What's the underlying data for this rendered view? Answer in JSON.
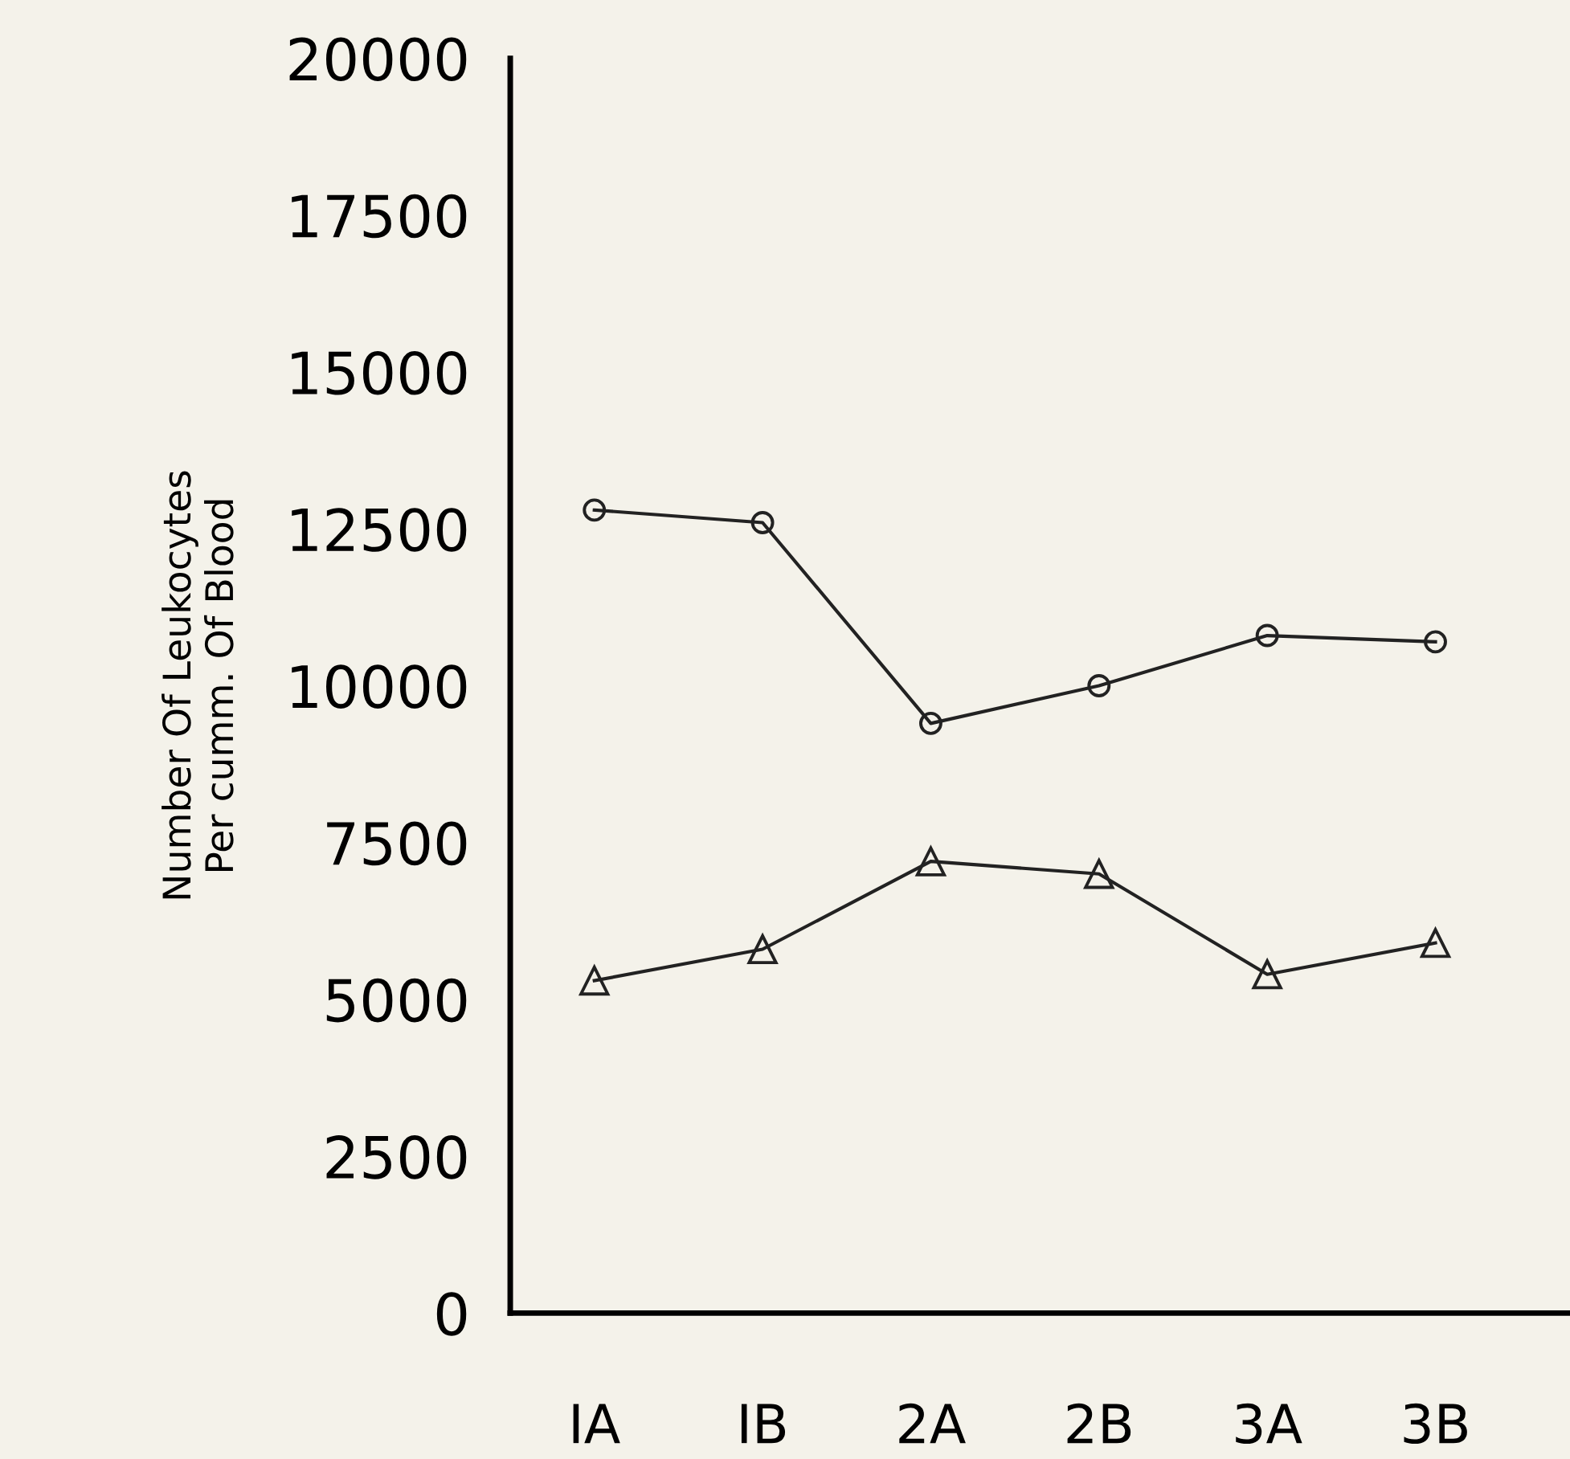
{
  "chart_data": {
    "type": "line",
    "ylabel": "Number Of Leukocytes\nPer cumm. Of Blood",
    "categories": [
      "IA",
      "IB",
      "2A",
      "2B",
      "3A",
      "3B"
    ],
    "series": [
      {
        "color": "#222222",
        "marker": "circle",
        "values": [
          12800,
          12600,
          9400,
          10000,
          10800,
          10700
        ]
      },
      {
        "color": "#222222",
        "marker": "triangle",
        "values": [
          5300,
          5800,
          7200,
          7000,
          5400,
          5900
        ]
      }
    ],
    "ylim": [
      0,
      20000
    ],
    "yticks": [
      0,
      2500,
      5000,
      7500,
      10000,
      12500,
      15000,
      17500,
      20000
    ],
    "grid": false,
    "legend": false,
    "line_style": "solid"
  }
}
